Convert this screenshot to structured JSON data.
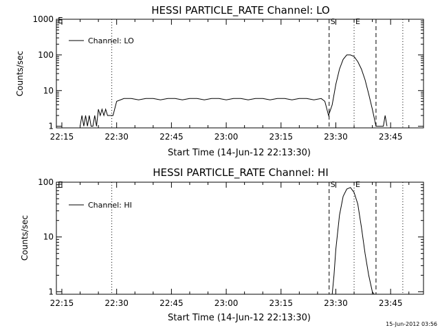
{
  "footer": {
    "timestamp": "15-Jun-2012 03:56"
  },
  "chart_data": [
    {
      "type": "line",
      "title": "HESSI PARTICLE_RATE Channel: LO",
      "xlabel": "Start Time (14-Jun-12 22:13:30)",
      "ylabel": "Counts/sec",
      "y_scale": "log",
      "ylim": [
        0.9,
        1000
      ],
      "xlim": [
        "22:13:30",
        "23:54:00"
      ],
      "x_ticks": [
        "22:15",
        "22:30",
        "22:45",
        "23:00",
        "23:15",
        "23:30",
        "23:45"
      ],
      "y_ticks": [
        {
          "value": 1,
          "label": "1"
        },
        {
          "value": 10,
          "label": "10"
        },
        {
          "value": 100,
          "label": "100"
        },
        {
          "value": 1000,
          "label": "1000"
        }
      ],
      "legend": {
        "position": "top-left",
        "entries": [
          "Channel: LO"
        ]
      },
      "markers": [
        {
          "time": "22:28:40",
          "style": "dotted",
          "label": ""
        },
        {
          "time": "23:28:10",
          "style": "dashed",
          "label": "S"
        },
        {
          "time": "23:35:00",
          "style": "dotted",
          "label": "E"
        },
        {
          "time": "23:41:00",
          "style": "dashed",
          "label": ""
        },
        {
          "time": "23:48:20",
          "style": "dotted",
          "label": ""
        }
      ],
      "corner_label": "E",
      "series": [
        {
          "x": [
            "22:20:00",
            "22:20:30",
            "22:21:00",
            "22:21:30",
            "22:22:00",
            "22:22:30",
            "22:23:00",
            "22:23:30",
            "22:24:00",
            "22:24:30",
            "22:25:00",
            "22:25:30",
            "22:26:00",
            "22:26:30",
            "22:27:00",
            "22:27:30",
            "22:28:00",
            "22:28:30",
            "22:29:00",
            "22:30:00",
            "22:32:00",
            "22:34:00",
            "22:36:00",
            "22:38:00",
            "22:40:00",
            "22:42:00",
            "22:44:00",
            "22:46:00",
            "22:48:00",
            "22:50:00",
            "22:52:00",
            "22:54:00",
            "22:56:00",
            "22:58:00",
            "23:00:00",
            "23:02:00",
            "23:04:00",
            "23:06:00",
            "23:08:00",
            "23:10:00",
            "23:12:00",
            "23:14:00",
            "23:16:00",
            "23:18:00",
            "23:20:00",
            "23:22:00",
            "23:24:00",
            "23:26:00",
            "23:27:00",
            "23:28:00",
            "23:29:00",
            "23:30:00",
            "23:31:00",
            "23:32:00",
            "23:33:00",
            "23:34:00",
            "23:35:00",
            "23:36:00",
            "23:37:00",
            "23:38:00",
            "23:39:00",
            "23:40:00",
            "23:41:00",
            "23:42:00",
            "23:43:00",
            "23:43:30",
            "23:44:00"
          ],
          "y": [
            1,
            2,
            1,
            2,
            1,
            2,
            1,
            1,
            2,
            1,
            3,
            2,
            3,
            2,
            3,
            2,
            2,
            2,
            2,
            5,
            6,
            6,
            5.5,
            6,
            6,
            5.5,
            6,
            6,
            5.5,
            6,
            6,
            5.5,
            6,
            6,
            5.5,
            6,
            6,
            5.5,
            6,
            6,
            5.5,
            6,
            6,
            5.5,
            6,
            6,
            5.5,
            6,
            5,
            2,
            4,
            15,
            40,
            75,
            100,
            100,
            90,
            65,
            40,
            20,
            8,
            3,
            1,
            1,
            1,
            2,
            1
          ]
        }
      ]
    },
    {
      "type": "line",
      "title": "HESSI PARTICLE_RATE Channel: HI",
      "xlabel": "Start Time (14-Jun-12 22:13:30)",
      "ylabel": "Counts/sec",
      "y_scale": "log",
      "ylim": [
        0.9,
        100
      ],
      "xlim": [
        "22:13:30",
        "23:54:00"
      ],
      "x_ticks": [
        "22:15",
        "22:30",
        "22:45",
        "23:00",
        "23:15",
        "23:30",
        "23:45"
      ],
      "y_ticks": [
        {
          "value": 1,
          "label": "1"
        },
        {
          "value": 10,
          "label": "10"
        },
        {
          "value": 100,
          "label": "100"
        }
      ],
      "legend": {
        "position": "top-left",
        "entries": [
          "Channel: HI"
        ]
      },
      "markers": [
        {
          "time": "22:28:40",
          "style": "dotted",
          "label": ""
        },
        {
          "time": "23:28:10",
          "style": "dashed",
          "label": "S"
        },
        {
          "time": "23:35:00",
          "style": "dotted",
          "label": "E"
        },
        {
          "time": "23:41:00",
          "style": "dashed",
          "label": ""
        },
        {
          "time": "23:48:20",
          "style": "dotted",
          "label": ""
        }
      ],
      "corner_label": "E",
      "series": [
        {
          "x": [
            "23:29:00",
            "23:29:30",
            "23:30:00",
            "23:31:00",
            "23:32:00",
            "23:33:00",
            "23:34:00",
            "23:35:00",
            "23:36:00",
            "23:37:00",
            "23:38:00",
            "23:39:00",
            "23:40:00",
            "23:40:30"
          ],
          "y": [
            0.9,
            2,
            6,
            25,
            55,
            75,
            80,
            65,
            40,
            15,
            5,
            2,
            1,
            0.9
          ]
        }
      ]
    }
  ]
}
